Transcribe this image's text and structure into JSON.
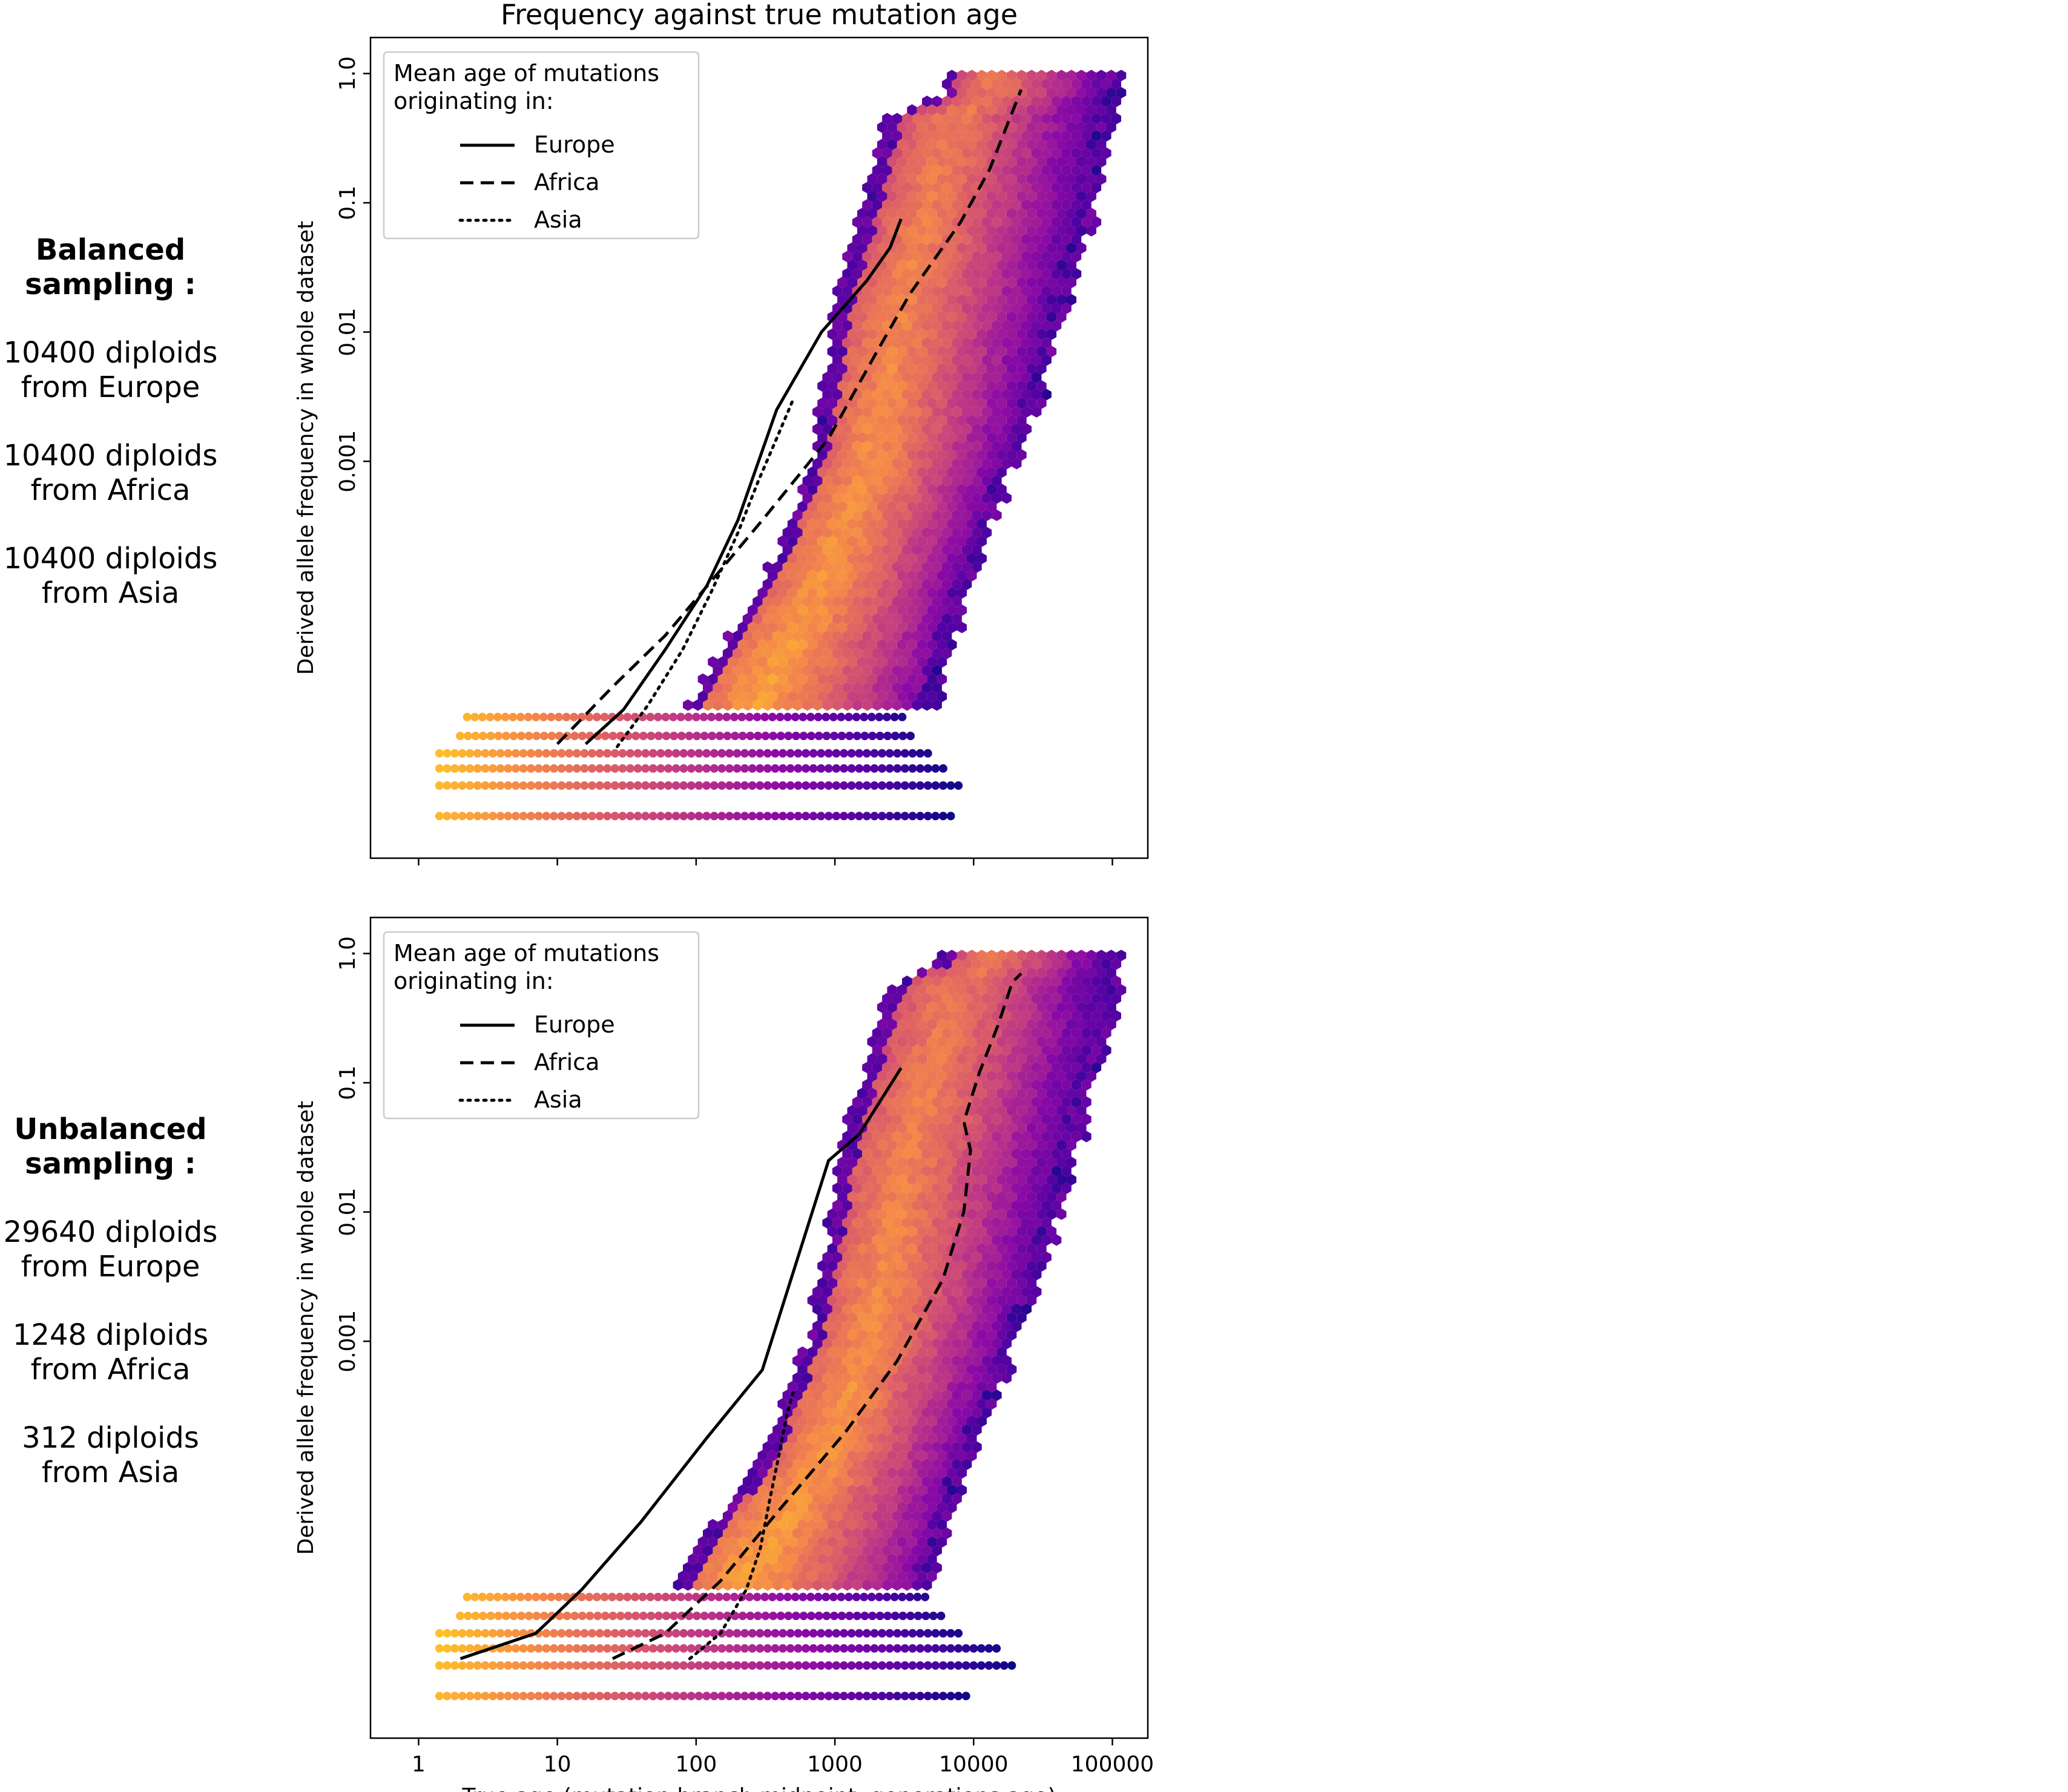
{
  "figure_title": "Frequency against true mutation age",
  "side_panels": [
    {
      "heading_lines": [
        "Balanced",
        "sampling :"
      ],
      "samples": [
        [
          "10400 diploids",
          "from Europe"
        ],
        [
          "10400 diploids",
          "from Africa"
        ],
        [
          "10400 diploids",
          "from Asia"
        ]
      ]
    },
    {
      "heading_lines": [
        "Unbalanced",
        "sampling :"
      ],
      "samples": [
        [
          "29640 diploids",
          "from Europe"
        ],
        [
          "1248 diploids",
          "from Africa"
        ],
        [
          "312 diploids",
          "from Asia"
        ]
      ]
    }
  ],
  "chart_data": [
    {
      "type": "line",
      "title": "Frequency against true mutation age",
      "xlabel": "",
      "ylabel": "Derived allele frequency in whole dataset",
      "x_scale": "log",
      "y_scale": "log",
      "xlim": [
        0.45,
        180000
      ],
      "ylim": [
        8.5e-07,
        1.9
      ],
      "x_ticks": [
        1,
        10,
        100,
        1000,
        10000,
        100000
      ],
      "x_tick_labels": [
        "",
        "",
        "",
        "",
        "",
        ""
      ],
      "y_ticks": [
        1.0,
        0.1,
        0.01,
        0.001
      ],
      "y_tick_labels": [
        "1.0",
        "0.1",
        "0.01",
        "0.001"
      ],
      "background": "hexbin density (plasma colormap), log-scale counts",
      "legend": {
        "position": "top-left",
        "title": "Mean age of mutations\noriginating in:",
        "entries": [
          {
            "label": "Europe",
            "style": "solid"
          },
          {
            "label": "Africa",
            "style": "dashed"
          },
          {
            "label": "Asia",
            "style": "dotted"
          }
        ]
      },
      "series": [
        {
          "name": "Europe",
          "style": "solid",
          "x": [
            16,
            30,
            60,
            120,
            200,
            380,
            800,
            1700,
            2500,
            3000
          ],
          "y": [
            6.5e-06,
            1.2e-05,
            3.5e-05,
            0.00011,
            0.00035,
            0.0025,
            0.01,
            0.025,
            0.045,
            0.075
          ]
        },
        {
          "name": "Africa",
          "style": "dashed",
          "x": [
            10,
            25,
            60,
            130,
            300,
            900,
            2000,
            3500,
            8000,
            13000,
            22000
          ],
          "y": [
            6.5e-06,
            1.8e-05,
            4.5e-05,
            0.00012,
            0.00035,
            0.0015,
            0.007,
            0.02,
            0.07,
            0.18,
            0.75
          ]
        },
        {
          "name": "Asia",
          "style": "dotted",
          "x": [
            27,
            45,
            80,
            130,
            200,
            280,
            380,
            500
          ],
          "y": [
            6.2e-06,
            1.3e-05,
            3.5e-05,
            0.0001,
            0.00028,
            0.0007,
            0.0015,
            0.003
          ]
        }
      ]
    },
    {
      "type": "line",
      "title": "",
      "xlabel": "True age (mutation branch midpoint, generations ago)",
      "ylabel": "Derived allele frequency in whole dataset",
      "x_scale": "log",
      "y_scale": "log",
      "xlim": [
        0.45,
        180000
      ],
      "ylim": [
        8.5e-07,
        1.9
      ],
      "x_ticks": [
        1,
        10,
        100,
        1000,
        10000,
        100000
      ],
      "x_tick_labels": [
        "1",
        "10",
        "100",
        "1000",
        "10000",
        "100000"
      ],
      "y_ticks": [
        1.0,
        0.1,
        0.01,
        0.001
      ],
      "y_tick_labels": [
        "1.0",
        "0.1",
        "0.01",
        "0.001"
      ],
      "background": "hexbin density (plasma colormap), log-scale counts",
      "legend": {
        "position": "top-left",
        "title": "Mean age of mutations\noriginating in:",
        "entries": [
          {
            "label": "Europe",
            "style": "solid"
          },
          {
            "label": "Africa",
            "style": "dashed"
          },
          {
            "label": "Asia",
            "style": "dotted"
          }
        ]
      },
      "series": [
        {
          "name": "Europe",
          "style": "solid",
          "x": [
            2,
            7,
            15,
            40,
            120,
            300,
            900,
            1500,
            3000
          ],
          "y": [
            3.5e-06,
            5.5e-06,
            1.2e-05,
            4e-05,
            0.00018,
            0.0006,
            0.025,
            0.04,
            0.13
          ]
        },
        {
          "name": "Africa",
          "style": "dashed",
          "x": [
            25,
            60,
            150,
            400,
            1200,
            2800,
            6000,
            8500,
            9500,
            8500,
            11000,
            15000,
            19000,
            22000
          ],
          "y": [
            3.5e-06,
            5.5e-06,
            1.4e-05,
            5e-05,
            0.0002,
            0.0007,
            0.003,
            0.01,
            0.03,
            0.05,
            0.12,
            0.28,
            0.6,
            0.7
          ]
        },
        {
          "name": "Asia",
          "style": "dotted",
          "x": [
            90,
            150,
            230,
            290,
            340,
            400,
            450,
            500
          ],
          "y": [
            3.5e-06,
            5.5e-06,
            1.2e-05,
            2.5e-05,
            6e-05,
            0.00014,
            0.00027,
            0.0004
          ]
        }
      ]
    }
  ]
}
